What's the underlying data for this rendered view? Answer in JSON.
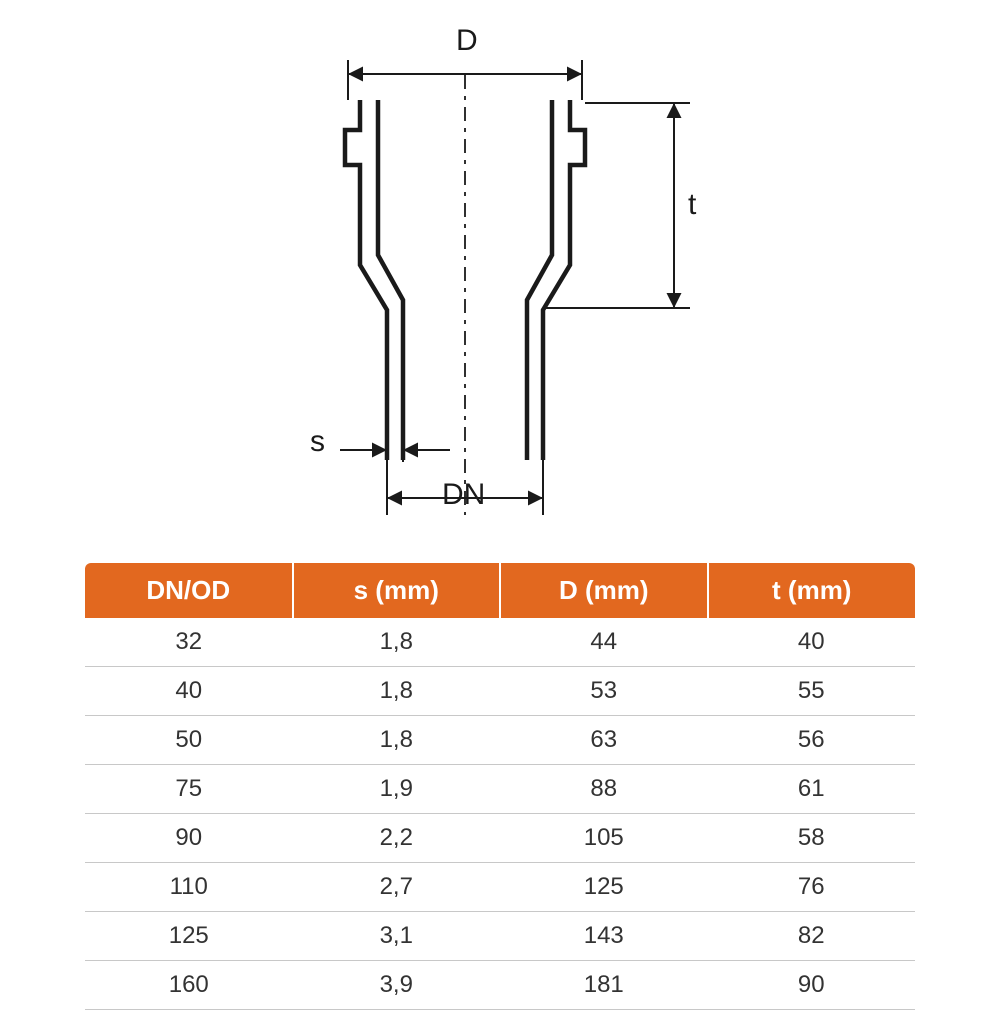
{
  "diagram": {
    "labels": {
      "D": "D",
      "t": "t",
      "s": "s",
      "DN": "DN"
    },
    "stroke_color": "#1a1a1a",
    "stroke_width_outline": 4.5,
    "stroke_width_dim": 2,
    "centerline_dash": "12 6 3 6",
    "label_fontsize": 30
  },
  "table": {
    "type": "table",
    "header_bg": "#e2681f",
    "header_fg": "#ffffff",
    "row_border": "#c8c8c8",
    "cell_color": "#333333",
    "header_fontsize": 26,
    "cell_fontsize": 24,
    "columns": [
      "DN/OD",
      "s (mm)",
      "D (mm)",
      "t (mm)"
    ],
    "rows": [
      [
        "32",
        "1,8",
        "44",
        "40"
      ],
      [
        "40",
        "1,8",
        "53",
        "55"
      ],
      [
        "50",
        "1,8",
        "63",
        "56"
      ],
      [
        "75",
        "1,9",
        "88",
        "61"
      ],
      [
        "90",
        "2,2",
        "105",
        "58"
      ],
      [
        "110",
        "2,7",
        "125",
        "76"
      ],
      [
        "125",
        "3,1",
        "143",
        "82"
      ],
      [
        "160",
        "3,9",
        "181",
        "90"
      ]
    ]
  }
}
